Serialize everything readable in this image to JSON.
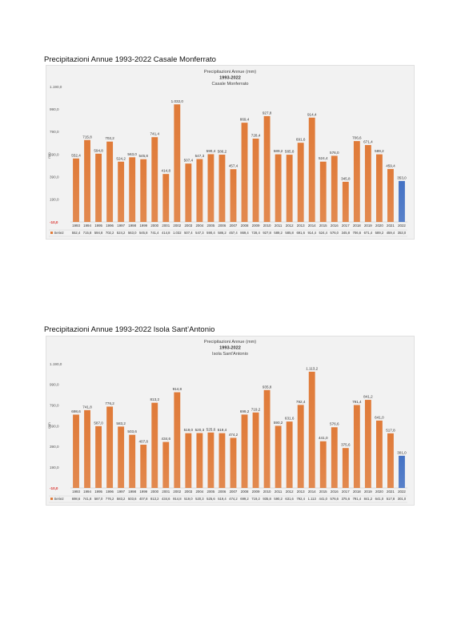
{
  "sections": [
    {
      "heading": "Precipitazioni Annue 1993-2022 Casale Monferrato",
      "chart_data": {
        "type": "bar",
        "title_lines": [
          "Precipitazioni Annue (mm)",
          "1993-2022",
          "Casale Monferrato"
        ],
        "xlabel": "",
        "ylabel": "mm",
        "ylim": [
          -10,
          1190
        ],
        "yticks": [
          "-10,0",
          "190,0",
          "390,0",
          "590,0",
          "790,0",
          "990,0",
          "1.190,0"
        ],
        "grid": false,
        "legend": "bottom-left table",
        "colors": {
          "bars": "#e07b39",
          "highlight": "#4472c4",
          "background": "#f2f2f2"
        },
        "highlight_category": "2022",
        "categories": [
          "1993",
          "1994",
          "1995",
          "1996",
          "1997",
          "1998",
          "1999",
          "2000",
          "2001",
          "2002",
          "2003",
          "2004",
          "2005",
          "2006",
          "2007",
          "2008",
          "2009",
          "2010",
          "2011",
          "2012",
          "2013",
          "2014",
          "2015",
          "2016",
          "2017",
          "2018",
          "2019",
          "2020",
          "2021",
          "2022"
        ],
        "series": [
          {
            "name": "Serie2",
            "values": [
              552.4,
              715.8,
              594.8,
              702.2,
              524.2,
              563.0,
              545.8,
              741.4,
              414.8,
              1032.0,
              507.4,
              547.3,
              590.4,
              586.2,
              457.4,
              869.4,
              728.4,
              927.8,
              589.2,
              585.8,
              691.6,
              914.4,
              524.4,
              576.0,
              345.8,
              706.6,
              671.4,
              589.2,
              459.4,
              353.0
            ],
            "labels": [
              "552,4",
              "715,8",
              "594,8",
              "702,2",
              "524,2",
              "563,0",
              "545,8",
              "741,4",
              "414,8",
              "1.032,0",
              "507,4",
              "547,3",
              "590,4",
              "586,2",
              "457,4",
              "869,4",
              "728,4",
              "927,8",
              "589,2",
              "585,8",
              "691,6",
              "914,4",
              "524,4",
              "576,0",
              "345,8",
              "706,6",
              "671,4",
              "589,2",
              "459,4",
              "353,0"
            ],
            "table_labels": [
              "552,4",
              "715,8",
              "594,8",
              "702,2",
              "524,2",
              "563,0",
              "545,8",
              "741,4",
              "414,8",
              "1.032",
              "507,4",
              "547,3",
              "590,4",
              "586,2",
              "457,4",
              "869,4",
              "728,4",
              "927,8",
              "589,2",
              "585,8",
              "691,6",
              "914,4",
              "524,4",
              "576,0",
              "345,8",
              "706,6",
              "671,4",
              "589,2",
              "459,4",
              "353,0"
            ]
          }
        ]
      }
    },
    {
      "heading": "Precipitazioni Annue 1993-2022 Isola Sant’Antonio",
      "chart_data": {
        "type": "bar",
        "title_lines": [
          "Precipitazioni Annue (mm)",
          "1993-2022",
          "Isola Sant'Antonio"
        ],
        "xlabel": "",
        "ylabel": "mm",
        "ylim": [
          -10,
          1190
        ],
        "yticks": [
          "-10,0",
          "190,0",
          "390,0",
          "590,0",
          "790,0",
          "990,0",
          "1.190,0"
        ],
        "grid": false,
        "legend": "bottom-left table",
        "colors": {
          "bars": "#e07b39",
          "highlight": "#4472c4",
          "background": "#f2f2f2"
        },
        "highlight_category": "2022",
        "categories": [
          "1993",
          "1994",
          "1995",
          "1996",
          "1997",
          "1998",
          "1999",
          "2000",
          "2001",
          "2002",
          "2003",
          "2004",
          "2005",
          "2006",
          "2007",
          "2008",
          "2009",
          "2010",
          "2011",
          "2012",
          "2013",
          "2014",
          "2015",
          "2016",
          "2017",
          "2018",
          "2019",
          "2020",
          "2021",
          "2022"
        ],
        "series": [
          {
            "name": "Serie2",
            "values": [
              698.6,
              741.8,
              587.0,
              776.2,
              583.2,
              503.6,
              407.8,
              813.2,
              434.6,
              914.8,
              519.0,
              520.3,
              525.6,
              519.4,
              474.2,
              699.2,
              719.2,
              935.8,
              590.2,
              631.6,
              792.4,
              1113.2,
              441.0,
              576.6,
              375.6,
              791.4,
              841.2,
              641.0,
              517.8,
              301.0
            ],
            "labels": [
              "698,6",
              "741,8",
              "587,0",
              "776,2",
              "583,2",
              "503,6",
              "407,8",
              "813,2",
              "434,6",
              "914,8",
              "519,0",
              "520,3",
              "525,6",
              "519,4",
              "474,2",
              "699,2",
              "719,2",
              "935,8",
              "590,2",
              "631,6",
              "792,4",
              "1.113,2",
              "441,0",
              "576,6",
              "375,6",
              "791,4",
              "841,2",
              "641,0",
              "517,8",
              "301,0"
            ],
            "table_labels": [
              "698,6",
              "741,8",
              "587,0",
              "776,2",
              "583,2",
              "503,6",
              "407,8",
              "813,2",
              "434,6",
              "914,8",
              "519,0",
              "520,3",
              "525,6",
              "519,4",
              "474,2",
              "699,2",
              "719,2",
              "935,8",
              "590,2",
              "631,6",
              "792,4",
              "1.113",
              "441,0",
              "576,6",
              "375,6",
              "791,4",
              "841,2",
              "641,0",
              "517,8",
              "301,0"
            ]
          }
        ]
      }
    }
  ]
}
